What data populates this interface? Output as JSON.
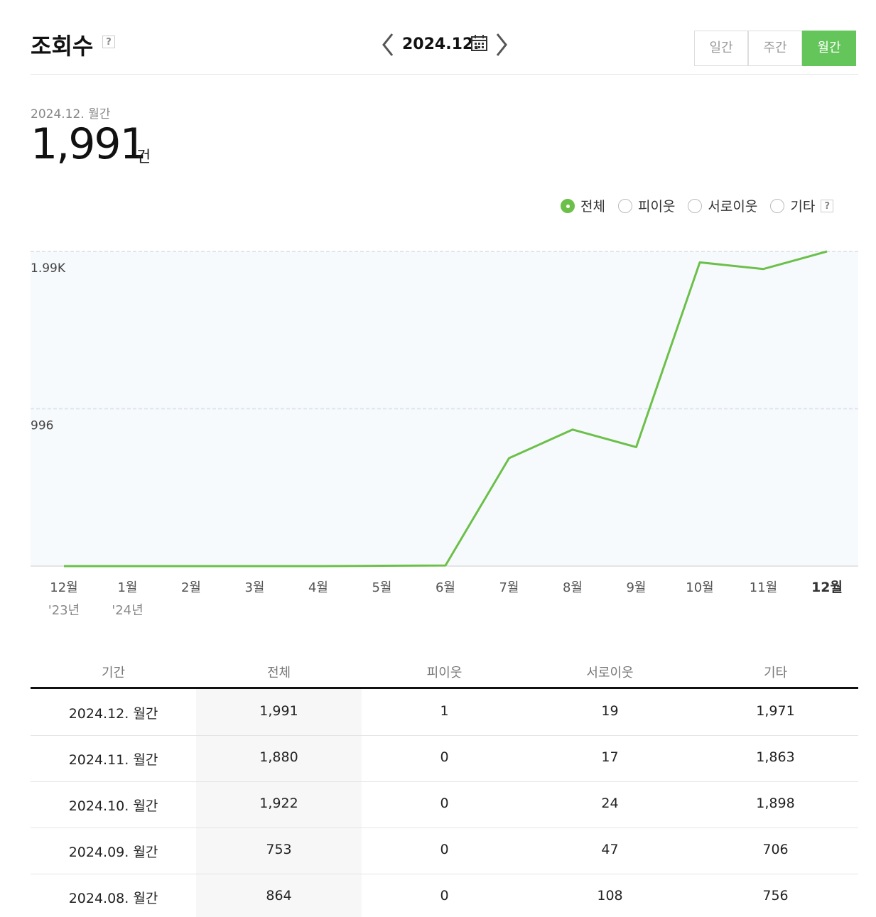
{
  "header": {
    "title": "조회수",
    "help": "?",
    "date": "2024.12.",
    "tabs": [
      "일간",
      "주간",
      "월간"
    ],
    "active_tab": 2
  },
  "summary": {
    "period": "2024.12. 월간",
    "value": "1,991",
    "unit": "건"
  },
  "filters": {
    "options": [
      "전체",
      "피이웃",
      "서로이웃",
      "기타"
    ],
    "selected": 0,
    "help": "?"
  },
  "chart_data": {
    "type": "line",
    "categories": [
      "12월",
      "1월",
      "2월",
      "3월",
      "4월",
      "5월",
      "6월",
      "7월",
      "8월",
      "9월",
      "10월",
      "11월",
      "12월"
    ],
    "year_labels": [
      "'23년",
      "'24년",
      null,
      null,
      null,
      null,
      null,
      null,
      null,
      null,
      null,
      null,
      null
    ],
    "series": [
      {
        "name": "전체",
        "color": "#6cc04a",
        "values": [
          0,
          0,
          0,
          0,
          0,
          2,
          4,
          683,
          864,
          753,
          1922,
          1880,
          1991
        ]
      }
    ],
    "ylim": [
      0,
      1991
    ],
    "yticks": [
      {
        "value": 1991,
        "label": "1.99K"
      },
      996
    ],
    "grid": true
  },
  "table": {
    "columns": [
      "기간",
      "전체",
      "피이웃",
      "서로이웃",
      "기타"
    ],
    "rows": [
      [
        "2024.12. 월간",
        "1,991",
        "1",
        "19",
        "1,971"
      ],
      [
        "2024.11. 월간",
        "1,880",
        "0",
        "17",
        "1,863"
      ],
      [
        "2024.10. 월간",
        "1,922",
        "0",
        "24",
        "1,898"
      ],
      [
        "2024.09. 월간",
        "753",
        "0",
        "47",
        "706"
      ],
      [
        "2024.08. 월간",
        "864",
        "0",
        "108",
        "756"
      ]
    ]
  }
}
